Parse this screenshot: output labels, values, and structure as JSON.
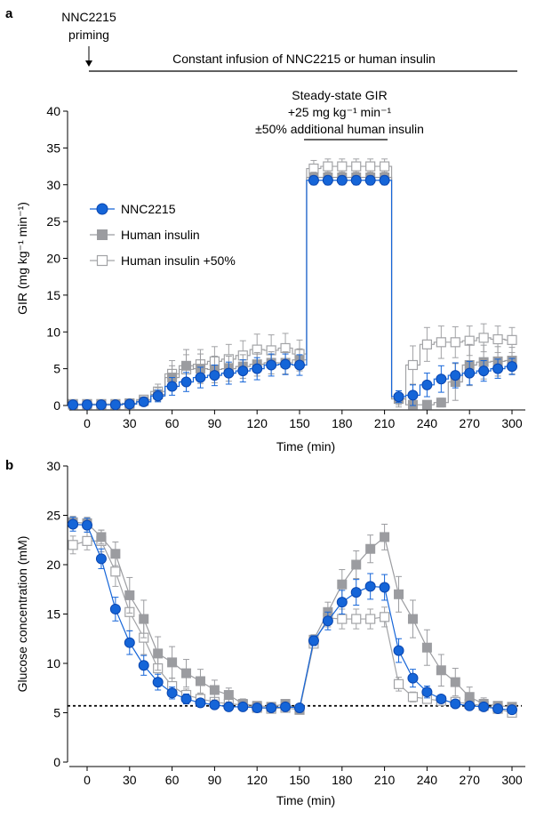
{
  "panel_a": {
    "letter": "a",
    "priming_label_line1": "NNC2215",
    "priming_label_line2": "priming",
    "infusion_label": "Constant infusion of NNC2215 or human insulin",
    "steady_line1": "Steady-state GIR",
    "steady_line2": "+25 mg kg⁻¹ min⁻¹",
    "steady_line3": "±50% additional human insulin"
  },
  "panel_b": {
    "letter": "b"
  },
  "legend": {
    "nnc": "NNC2215",
    "hi": "Human insulin",
    "hi50": "Human insulin +50%"
  },
  "colors": {
    "nnc": "#1565d8",
    "nnc_edge": "#0b47b0",
    "hi": "#9b9ca0",
    "hi50": "#a2a3a6",
    "axis": "#000000"
  },
  "chart_data": [
    {
      "type": "line",
      "panel": "a",
      "xlabel": "Time (min)",
      "ylabel": "GIR (mg kg⁻¹ min⁻¹)",
      "xlim": [
        -10,
        303
      ],
      "ylim": [
        0,
        40
      ],
      "xticks": [
        0,
        30,
        60,
        90,
        120,
        150,
        180,
        210,
        240,
        270,
        300
      ],
      "yticks": [
        0,
        5,
        10,
        15,
        20,
        25,
        30,
        35,
        40
      ],
      "legend_position": "middle-left",
      "series": [
        {
          "name": "NNC2215",
          "key": "nnc",
          "marker": "circle",
          "step": true,
          "x": [
            -10,
            0,
            10,
            20,
            30,
            40,
            50,
            60,
            70,
            80,
            90,
            100,
            110,
            120,
            130,
            140,
            150,
            160,
            170,
            180,
            190,
            200,
            210,
            220,
            230,
            240,
            250,
            260,
            270,
            280,
            290,
            300
          ],
          "y": [
            0.1,
            0.1,
            0.1,
            0.1,
            0.2,
            0.5,
            1.3,
            2.6,
            3.2,
            3.8,
            4.1,
            4.4,
            4.7,
            5.0,
            5.5,
            5.6,
            5.5,
            30.6,
            30.6,
            30.6,
            30.6,
            30.6,
            30.6,
            1.2,
            1.4,
            2.8,
            3.6,
            4.1,
            4.4,
            4.7,
            5.0,
            5.3
          ],
          "err": [
            0,
            0,
            0,
            0,
            0.1,
            0.3,
            0.8,
            1.2,
            1.3,
            1.4,
            1.4,
            1.5,
            1.5,
            1.5,
            1.5,
            1.4,
            1.4,
            0.6,
            0.6,
            0.6,
            0.6,
            0.6,
            0.6,
            0.8,
            1.4,
            1.6,
            1.8,
            1.7,
            1.6,
            1.4,
            1.3,
            1.1
          ]
        },
        {
          "name": "Human insulin",
          "key": "hi",
          "marker": "square-filled",
          "step": true,
          "x": [
            -10,
            0,
            10,
            20,
            30,
            40,
            50,
            60,
            70,
            80,
            90,
            100,
            110,
            120,
            130,
            140,
            150,
            160,
            170,
            180,
            190,
            200,
            210,
            220,
            230,
            240,
            250,
            260,
            270,
            280,
            290,
            300
          ],
          "y": [
            0.1,
            0.1,
            0.1,
            0.1,
            0.2,
            0.6,
            1.5,
            3.8,
            5.4,
            5.0,
            4.9,
            5.0,
            5.3,
            5.6,
            5.8,
            5.8,
            6.2,
            31.0,
            31.0,
            31.0,
            31.0,
            31.0,
            31.0,
            0.9,
            0.1,
            0.1,
            0.4,
            3.2,
            5.5,
            5.9,
            6.0,
            6.1
          ],
          "err": [
            0,
            0,
            0,
            0,
            0.1,
            0.4,
            0.9,
            1.6,
            2.2,
            2.0,
            1.8,
            1.7,
            1.6,
            1.6,
            1.5,
            1.5,
            1.5,
            0.7,
            0.7,
            0.7,
            0.7,
            0.7,
            0.7,
            0.8,
            0.2,
            0.2,
            0.6,
            2.5,
            2.8,
            2.3,
            2.0,
            1.8
          ]
        },
        {
          "name": "Human insulin +50%",
          "key": "hi50",
          "marker": "square-open",
          "step": true,
          "x": [
            -10,
            0,
            10,
            20,
            30,
            40,
            50,
            60,
            70,
            80,
            90,
            100,
            110,
            120,
            130,
            140,
            150,
            160,
            170,
            180,
            190,
            200,
            210,
            220,
            230,
            240,
            250,
            260,
            270,
            280,
            290,
            300
          ],
          "y": [
            0.2,
            0.2,
            0.2,
            0.2,
            0.3,
            0.8,
            1.9,
            4.3,
            4.9,
            5.6,
            6.0,
            6.3,
            6.8,
            7.6,
            7.5,
            7.8,
            7.0,
            32.2,
            32.5,
            32.5,
            32.5,
            32.5,
            32.5,
            0.9,
            5.5,
            8.3,
            8.6,
            8.6,
            8.8,
            9.2,
            9.0,
            8.9
          ],
          "err": [
            0,
            0,
            0,
            0,
            0.2,
            0.5,
            1.0,
            1.8,
            2.0,
            2.0,
            2.0,
            2.0,
            2.0,
            2.1,
            2.1,
            2.0,
            1.9,
            1.1,
            1.0,
            1.0,
            1.0,
            1.0,
            1.0,
            1.1,
            2.6,
            2.3,
            2.2,
            2.1,
            2.0,
            1.9,
            1.8,
            1.7
          ]
        }
      ]
    },
    {
      "type": "line",
      "panel": "b",
      "xlabel": "Time (min)",
      "ylabel": "Glucose concentration (mM)",
      "xlim": [
        -10,
        303
      ],
      "ylim": [
        0,
        30
      ],
      "xticks": [
        0,
        30,
        60,
        90,
        120,
        150,
        180,
        210,
        240,
        270,
        300
      ],
      "yticks": [
        0,
        5,
        10,
        15,
        20,
        25,
        30
      ],
      "reference_line": 5.7,
      "series": [
        {
          "name": "NNC2215",
          "key": "nnc",
          "marker": "circle",
          "x": [
            -10,
            0,
            10,
            20,
            30,
            40,
            50,
            60,
            70,
            80,
            90,
            100,
            110,
            120,
            130,
            140,
            150,
            160,
            170,
            180,
            190,
            200,
            210,
            220,
            230,
            240,
            250,
            260,
            270,
            280,
            290,
            300
          ],
          "y": [
            24.1,
            24.0,
            20.6,
            15.5,
            12.1,
            9.8,
            8.1,
            7.0,
            6.4,
            6.0,
            5.8,
            5.6,
            5.6,
            5.5,
            5.5,
            5.6,
            5.5,
            12.3,
            14.3,
            16.2,
            17.2,
            17.8,
            17.7,
            11.3,
            8.5,
            7.1,
            6.4,
            5.9,
            5.7,
            5.6,
            5.4,
            5.3
          ],
          "err": [
            0.7,
            0.7,
            1.0,
            1.2,
            1.2,
            1.0,
            0.8,
            0.6,
            0.5,
            0.4,
            0.3,
            0.3,
            0.3,
            0.3,
            0.3,
            0.3,
            0.3,
            0.5,
            0.9,
            1.2,
            1.3,
            1.3,
            1.3,
            1.2,
            0.9,
            0.6,
            0.4,
            0.4,
            0.3,
            0.3,
            0.3,
            0.3
          ]
        },
        {
          "name": "Human insulin",
          "key": "hi",
          "marker": "square-filled",
          "x": [
            -10,
            0,
            10,
            20,
            30,
            40,
            50,
            60,
            70,
            80,
            90,
            100,
            110,
            120,
            130,
            140,
            150,
            160,
            170,
            180,
            190,
            200,
            210,
            220,
            230,
            240,
            250,
            260,
            270,
            280,
            290,
            300
          ],
          "y": [
            24.3,
            24.2,
            22.8,
            21.1,
            16.9,
            14.5,
            11.0,
            10.1,
            9.0,
            8.2,
            7.3,
            6.8,
            5.9,
            5.7,
            5.6,
            5.9,
            5.3,
            12.4,
            15.2,
            18.0,
            20.0,
            21.6,
            22.8,
            17.0,
            14.5,
            11.6,
            9.3,
            8.1,
            6.6,
            5.9,
            5.7,
            5.6
          ],
          "err": [
            0.6,
            0.6,
            0.7,
            1.2,
            1.8,
            1.9,
            1.7,
            1.6,
            1.4,
            1.2,
            1.0,
            0.7,
            0.5,
            0.4,
            0.4,
            0.4,
            0.4,
            0.5,
            1.0,
            1.5,
            1.4,
            1.4,
            1.3,
            1.8,
            1.9,
            1.8,
            1.6,
            1.4,
            1.0,
            0.6,
            0.4,
            0.4
          ]
        },
        {
          "name": "Human insulin +50%",
          "key": "hi50",
          "marker": "square-open",
          "x": [
            -10,
            0,
            10,
            20,
            30,
            40,
            50,
            60,
            70,
            80,
            90,
            100,
            110,
            120,
            130,
            140,
            150,
            160,
            170,
            180,
            190,
            200,
            210,
            220,
            230,
            240,
            250,
            260,
            270,
            280,
            290,
            300
          ],
          "y": [
            22.0,
            22.4,
            22.4,
            19.3,
            15.2,
            12.6,
            9.5,
            7.7,
            6.8,
            6.4,
            6.1,
            5.9,
            5.8,
            5.5,
            5.4,
            5.5,
            5.3,
            12.0,
            14.6,
            14.5,
            14.5,
            14.5,
            14.7,
            7.9,
            6.6,
            6.4,
            6.2,
            6.1,
            5.9,
            5.7,
            5.4,
            5.0
          ],
          "err": [
            0.9,
            0.9,
            1.1,
            1.5,
            1.9,
            1.7,
            1.2,
            0.8,
            0.6,
            0.5,
            0.4,
            0.4,
            0.4,
            0.3,
            0.3,
            0.3,
            0.3,
            0.4,
            0.9,
            1.0,
            1.0,
            1.0,
            1.0,
            0.7,
            0.5,
            0.4,
            0.4,
            0.4,
            0.3,
            0.3,
            0.3,
            0.3
          ]
        }
      ]
    }
  ]
}
